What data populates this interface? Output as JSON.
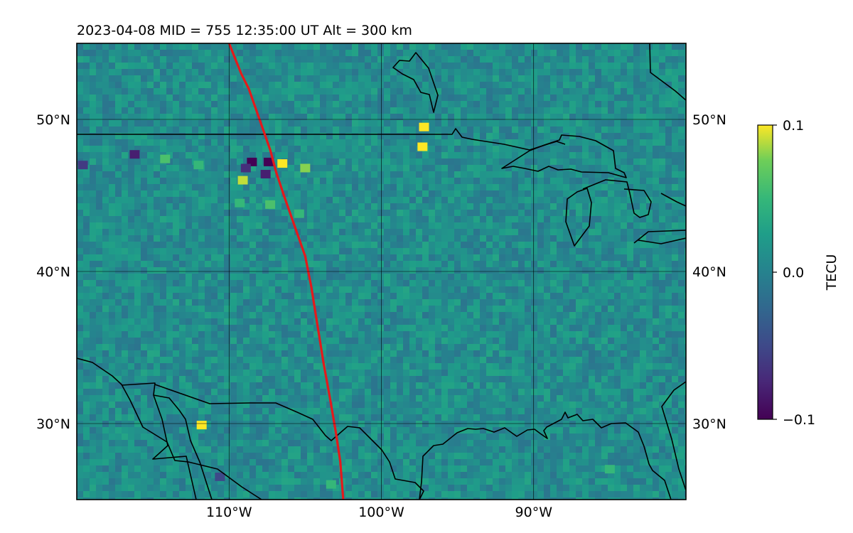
{
  "chart_data": {
    "type": "heatmap",
    "title": "2023-04-08  MID = 755    12:35:00  UT  Alt = 300 km",
    "xlabel": "",
    "ylabel": "",
    "xlim": [
      -120,
      -80
    ],
    "ylim": [
      25,
      55
    ],
    "x_ticks": [
      {
        "value": -110,
        "label": "110°W"
      },
      {
        "value": -100,
        "label": "100°W"
      },
      {
        "value": -90,
        "label": "90°W"
      }
    ],
    "y_ticks": [
      {
        "value": 50,
        "label": "50°N"
      },
      {
        "value": 40,
        "label": "40°N"
      },
      {
        "value": 30,
        "label": "30°N"
      }
    ],
    "grid": true,
    "colormap": "viridis",
    "colorbar": {
      "label": "TECU",
      "vmin": -0.1,
      "vmax": 0.1,
      "ticks": [
        {
          "value": 0.1,
          "label": "0.1"
        },
        {
          "value": 0.0,
          "label": "0.0"
        },
        {
          "value": -0.1,
          "label": "−0.1"
        }
      ]
    },
    "background_value": 0.01,
    "anomalies": [
      {
        "lon": -116.2,
        "lat": 47.7,
        "value": -0.08
      },
      {
        "lon": -119.6,
        "lat": 47.0,
        "value": -0.06
      },
      {
        "lon": -108.5,
        "lat": 47.2,
        "value": -0.1
      },
      {
        "lon": -107.4,
        "lat": 47.2,
        "value": -0.1
      },
      {
        "lon": -107.6,
        "lat": 46.4,
        "value": -0.08
      },
      {
        "lon": -108.9,
        "lat": 46.8,
        "value": -0.07
      },
      {
        "lon": -106.5,
        "lat": 47.1,
        "value": 0.1
      },
      {
        "lon": -109.1,
        "lat": 46.0,
        "value": 0.09
      },
      {
        "lon": -105.0,
        "lat": 46.8,
        "value": 0.08
      },
      {
        "lon": -97.2,
        "lat": 49.5,
        "value": 0.1
      },
      {
        "lon": -97.3,
        "lat": 48.2,
        "value": 0.1
      },
      {
        "lon": -114.2,
        "lat": 47.4,
        "value": 0.06
      },
      {
        "lon": -112.0,
        "lat": 47.0,
        "value": 0.05
      },
      {
        "lon": -109.3,
        "lat": 44.5,
        "value": 0.05
      },
      {
        "lon": -107.3,
        "lat": 44.4,
        "value": 0.06
      },
      {
        "lon": -105.4,
        "lat": 43.8,
        "value": 0.05
      },
      {
        "lon": -111.8,
        "lat": 29.9,
        "value": 0.1
      },
      {
        "lon": -110.6,
        "lat": 26.5,
        "value": -0.05
      },
      {
        "lon": -103.3,
        "lat": 26.0,
        "value": 0.05
      },
      {
        "lon": -85.0,
        "lat": 27.0,
        "value": 0.05
      }
    ],
    "track": {
      "color": "#e31a1c",
      "lon": [
        -110.0,
        -109.6,
        -109.2,
        -108.7,
        -108.0,
        -107.3,
        -106.9,
        -106.4,
        -105.7,
        -105.0,
        -104.6,
        -104.2,
        -103.8,
        -103.4,
        -103.0,
        -102.7,
        -102.5
      ],
      "lat": [
        55.0,
        54.0,
        53.0,
        52.0,
        50.0,
        48.0,
        46.5,
        45.0,
        43.0,
        41.0,
        39.0,
        36.5,
        34.0,
        31.8,
        29.5,
        27.5,
        25.0
      ]
    }
  }
}
